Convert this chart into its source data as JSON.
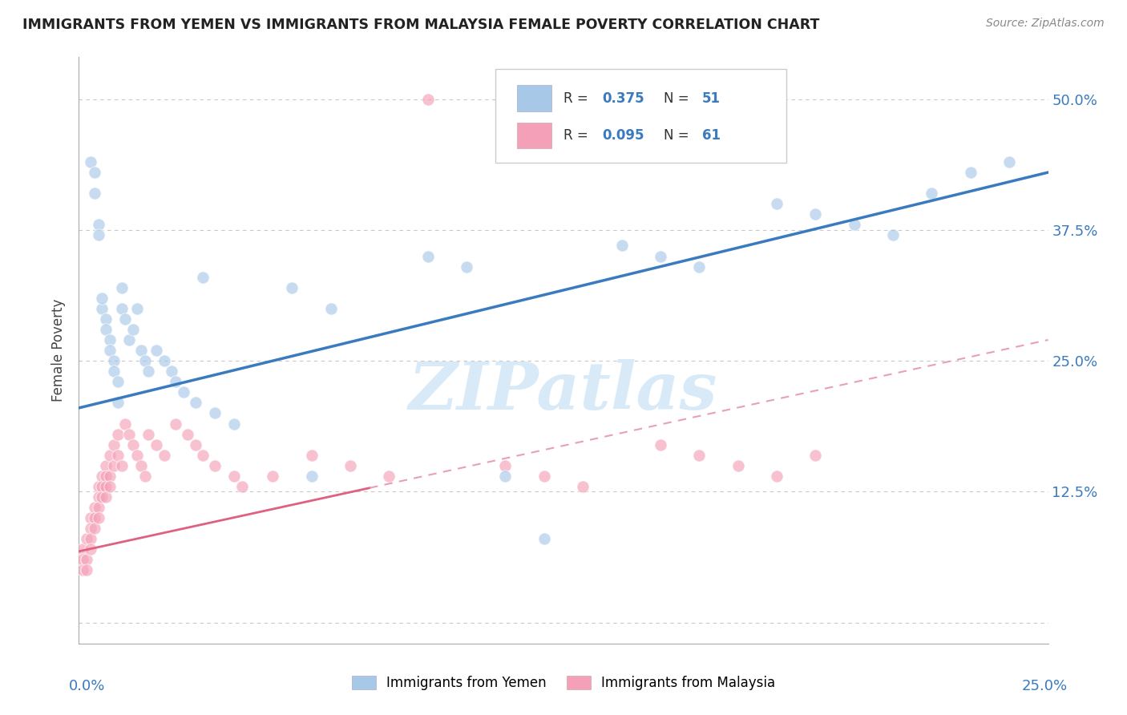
{
  "title": "IMMIGRANTS FROM YEMEN VS IMMIGRANTS FROM MALAYSIA FEMALE POVERTY CORRELATION CHART",
  "source": "Source: ZipAtlas.com",
  "ylabel": "Female Poverty",
  "xlim": [
    0.0,
    0.25
  ],
  "ylim": [
    -0.02,
    0.54
  ],
  "R_yemen": 0.375,
  "N_yemen": 51,
  "R_malaysia": 0.095,
  "N_malaysia": 61,
  "color_yemen": "#a8c8e8",
  "color_malaysia": "#f4a0b8",
  "color_trendline_yemen": "#3a7abf",
  "color_trendline_malaysia": "#e06080",
  "color_trendline_malaysia_dash": "#e8a0b8",
  "yticks": [
    0.0,
    0.125,
    0.25,
    0.375,
    0.5
  ],
  "ytick_labels": [
    "",
    "12.5%",
    "25.0%",
    "37.5%",
    "50.0%"
  ],
  "legend_box_color": "#e8f0f8",
  "legend_text_color": "#3a7abf",
  "watermark_color": "#d8eaf8",
  "yemen_x": [
    0.003,
    0.004,
    0.004,
    0.005,
    0.005,
    0.006,
    0.006,
    0.007,
    0.007,
    0.008,
    0.008,
    0.009,
    0.009,
    0.01,
    0.01,
    0.011,
    0.011,
    0.012,
    0.013,
    0.014,
    0.015,
    0.016,
    0.017,
    0.018,
    0.02,
    0.022,
    0.024,
    0.025,
    0.027,
    0.03,
    0.032,
    0.035,
    0.04,
    0.055,
    0.06,
    0.065,
    0.09,
    0.1,
    0.11,
    0.12,
    0.14,
    0.15,
    0.16,
    0.17,
    0.18,
    0.19,
    0.2,
    0.21,
    0.22,
    0.23,
    0.24
  ],
  "yemen_y": [
    0.44,
    0.41,
    0.43,
    0.38,
    0.37,
    0.3,
    0.31,
    0.29,
    0.28,
    0.27,
    0.26,
    0.25,
    0.24,
    0.23,
    0.21,
    0.32,
    0.3,
    0.29,
    0.27,
    0.28,
    0.3,
    0.26,
    0.25,
    0.24,
    0.26,
    0.25,
    0.24,
    0.23,
    0.22,
    0.21,
    0.33,
    0.2,
    0.19,
    0.32,
    0.14,
    0.3,
    0.35,
    0.34,
    0.14,
    0.08,
    0.36,
    0.35,
    0.34,
    0.46,
    0.4,
    0.39,
    0.38,
    0.37,
    0.41,
    0.43,
    0.44
  ],
  "malaysia_x": [
    0.001,
    0.001,
    0.001,
    0.002,
    0.002,
    0.002,
    0.003,
    0.003,
    0.003,
    0.003,
    0.004,
    0.004,
    0.004,
    0.005,
    0.005,
    0.005,
    0.005,
    0.006,
    0.006,
    0.006,
    0.007,
    0.007,
    0.007,
    0.007,
    0.008,
    0.008,
    0.008,
    0.009,
    0.009,
    0.01,
    0.01,
    0.011,
    0.012,
    0.013,
    0.014,
    0.015,
    0.016,
    0.017,
    0.018,
    0.02,
    0.022,
    0.025,
    0.028,
    0.03,
    0.032,
    0.035,
    0.04,
    0.042,
    0.05,
    0.06,
    0.07,
    0.08,
    0.09,
    0.11,
    0.12,
    0.13,
    0.15,
    0.16,
    0.17,
    0.18,
    0.19
  ],
  "malaysia_y": [
    0.07,
    0.06,
    0.05,
    0.08,
    0.06,
    0.05,
    0.1,
    0.09,
    0.08,
    0.07,
    0.11,
    0.1,
    0.09,
    0.13,
    0.12,
    0.11,
    0.1,
    0.14,
    0.13,
    0.12,
    0.15,
    0.14,
    0.13,
    0.12,
    0.16,
    0.14,
    0.13,
    0.17,
    0.15,
    0.18,
    0.16,
    0.15,
    0.19,
    0.18,
    0.17,
    0.16,
    0.15,
    0.14,
    0.18,
    0.17,
    0.16,
    0.19,
    0.18,
    0.17,
    0.16,
    0.15,
    0.14,
    0.13,
    0.14,
    0.16,
    0.15,
    0.14,
    0.5,
    0.15,
    0.14,
    0.13,
    0.17,
    0.16,
    0.15,
    0.14,
    0.16
  ]
}
